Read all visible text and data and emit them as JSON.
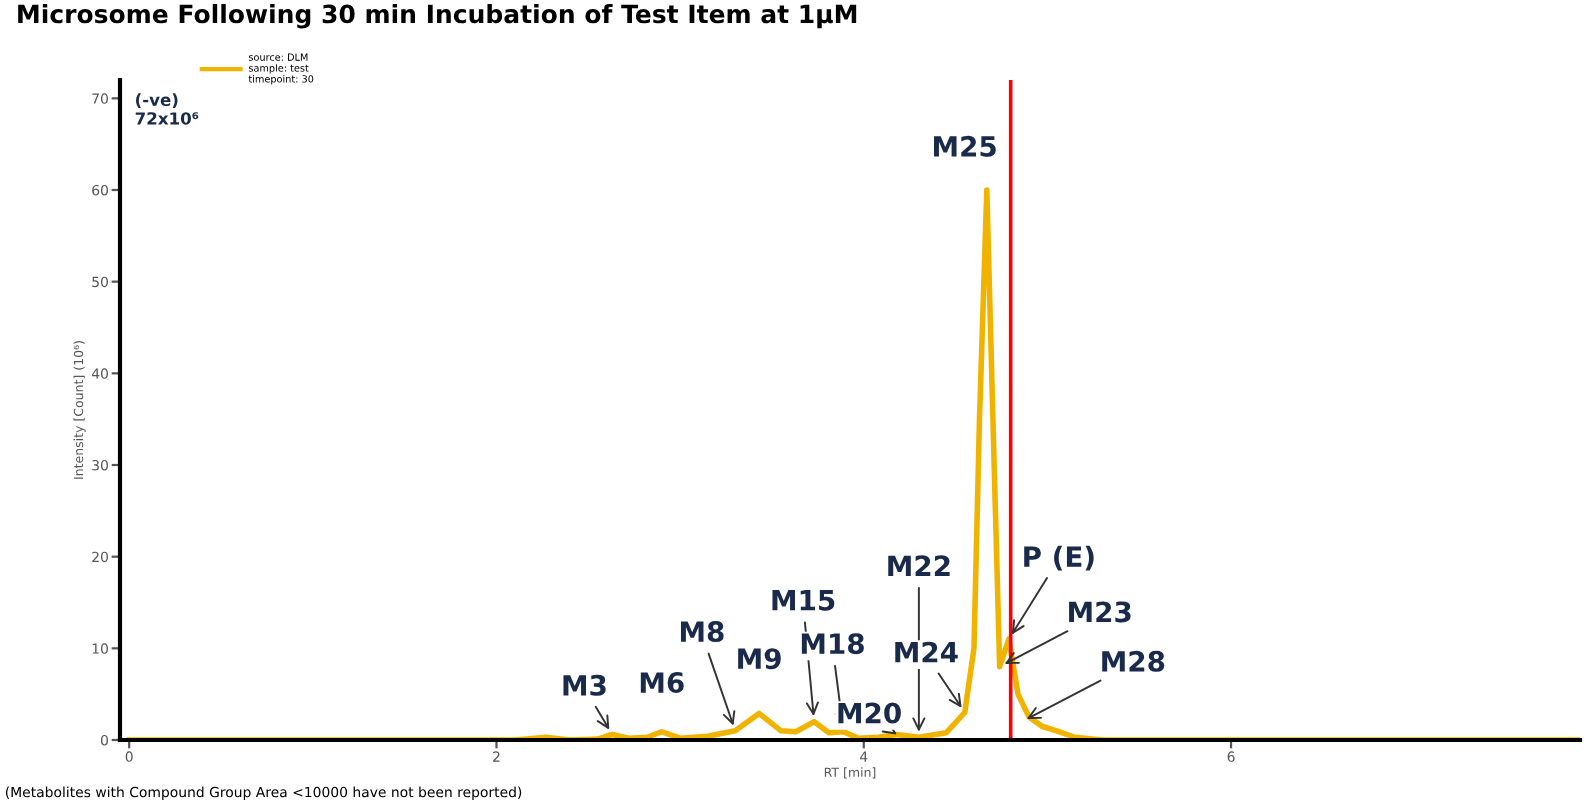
{
  "chart_data": {
    "type": "line",
    "title": "Microsome Following 30 min Incubation of Test Item at 1µM",
    "xlabel": "RT [min]",
    "ylabel": "Intensity [Count] (10⁶)",
    "xlim": [
      -0.05,
      7.9
    ],
    "xticks": [
      0,
      2,
      4,
      6
    ],
    "ylim": [
      0,
      72
    ],
    "yticks": [
      0,
      10,
      20,
      30,
      40,
      50,
      60,
      70
    ],
    "grid": false,
    "legend": "top left",
    "marker": "none",
    "line_style": "solid",
    "series": [
      {
        "name": "source: DLM\nsample: test\ntimepoint: 30",
        "color": "#f0b400",
        "x": [
          0,
          2.1,
          2.27,
          2.4,
          2.55,
          2.63,
          2.72,
          2.82,
          2.9,
          3.0,
          3.15,
          3.3,
          3.43,
          3.55,
          3.63,
          3.73,
          3.81,
          3.89,
          3.97,
          4.08,
          4.18,
          4.3,
          4.45,
          4.55,
          4.6,
          4.63,
          4.67,
          4.71,
          4.74,
          4.79,
          4.84,
          4.9,
          4.97,
          5.05,
          5.15,
          5.3,
          7.9
        ],
        "values": [
          0,
          0,
          0.3,
          0,
          0.1,
          0.6,
          0.2,
          0.3,
          0.9,
          0.2,
          0.4,
          1.0,
          2.9,
          1.0,
          0.9,
          2.0,
          0.8,
          0.9,
          0.2,
          0.3,
          0.6,
          0.3,
          0.8,
          3,
          10,
          35,
          60,
          30,
          8,
          11,
          5,
          2.5,
          1.5,
          1,
          0.3,
          0,
          0
        ]
      }
    ],
    "ref_lines": [
      {
        "axis": "x",
        "value": 4.8,
        "color": "#ff0000"
      }
    ],
    "annotations": [
      {
        "text": "M3",
        "x": 2.63,
        "y": 0.6
      },
      {
        "text": "M6",
        "x": 2.9,
        "y": 0.9
      },
      {
        "text": "M8",
        "x": 3.3,
        "y": 1.0
      },
      {
        "text": "M9",
        "x": 3.43,
        "y": 2.9
      },
      {
        "text": "M15",
        "x": 3.73,
        "y": 2.0
      },
      {
        "text": "M18",
        "x": 3.89,
        "y": 0.9
      },
      {
        "text": "M20",
        "x": 4.18,
        "y": 0.6
      },
      {
        "text": "M22",
        "x": 4.3,
        "y": 0.3
      },
      {
        "text": "M24",
        "x": 4.55,
        "y": 3
      },
      {
        "text": "M25",
        "x": 4.67,
        "y": 60
      },
      {
        "text": "P (E)",
        "x": 4.79,
        "y": 11
      },
      {
        "text": "M23",
        "x": 4.74,
        "y": 8
      },
      {
        "text": "M28",
        "x": 4.86,
        "y": 2
      },
      "(-ve)\n72x10⁶",
      "(Metabolites with Compound Group Area <10000 have not been reported)"
    ]
  }
}
